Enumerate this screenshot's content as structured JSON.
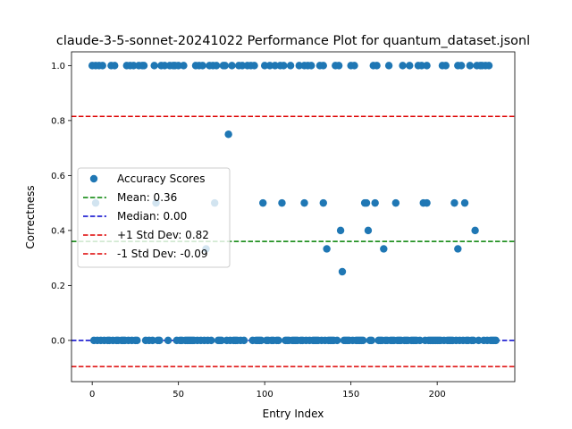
{
  "chart_data": {
    "type": "scatter",
    "title": "claude-3-5-sonnet-20241022 Performance Plot for quantum_dataset.jsonl",
    "xlabel": "Entry Index",
    "ylabel": "Correctness",
    "xlim": [
      -12,
      245
    ],
    "ylim": [
      -0.15,
      1.05
    ],
    "xticks": [
      0,
      50,
      100,
      150,
      200
    ],
    "yticks": [
      0.0,
      0.2,
      0.4,
      0.6,
      0.8,
      1.0
    ],
    "xtick_labels": [
      "0",
      "50",
      "100",
      "150",
      "200"
    ],
    "ytick_labels": [
      "0.0",
      "0.2",
      "0.4",
      "0.6",
      "0.8",
      "1.0"
    ],
    "grid": false,
    "legend_position": "center-left",
    "series": [
      {
        "name": "Accuracy Scores",
        "color": "#1f77b4",
        "points": [
          [
            0,
            1.0
          ],
          [
            2,
            1.0
          ],
          [
            4,
            1.0
          ],
          [
            6,
            1.0
          ],
          [
            11,
            1.0
          ],
          [
            13,
            1.0
          ],
          [
            20,
            1.0
          ],
          [
            22,
            1.0
          ],
          [
            24,
            1.0
          ],
          [
            27,
            1.0
          ],
          [
            29,
            1.0
          ],
          [
            30,
            1.0
          ],
          [
            36,
            1.0
          ],
          [
            40,
            1.0
          ],
          [
            42,
            1.0
          ],
          [
            45,
            1.0
          ],
          [
            47,
            1.0
          ],
          [
            48,
            1.0
          ],
          [
            50,
            1.0
          ],
          [
            53,
            1.0
          ],
          [
            60,
            1.0
          ],
          [
            62,
            1.0
          ],
          [
            64,
            1.0
          ],
          [
            68,
            1.0
          ],
          [
            70,
            1.0
          ],
          [
            72,
            1.0
          ],
          [
            76,
            1.0
          ],
          [
            77,
            1.0
          ],
          [
            81,
            1.0
          ],
          [
            85,
            1.0
          ],
          [
            87,
            1.0
          ],
          [
            90,
            1.0
          ],
          [
            92,
            1.0
          ],
          [
            94,
            1.0
          ],
          [
            100,
            1.0
          ],
          [
            103,
            1.0
          ],
          [
            106,
            1.0
          ],
          [
            109,
            1.0
          ],
          [
            111,
            1.0
          ],
          [
            115,
            1.0
          ],
          [
            120,
            1.0
          ],
          [
            123,
            1.0
          ],
          [
            125,
            1.0
          ],
          [
            127,
            1.0
          ],
          [
            132,
            1.0
          ],
          [
            134,
            1.0
          ],
          [
            141,
            1.0
          ],
          [
            143,
            1.0
          ],
          [
            150,
            1.0
          ],
          [
            152,
            1.0
          ],
          [
            163,
            1.0
          ],
          [
            165,
            1.0
          ],
          [
            172,
            1.0
          ],
          [
            180,
            1.0
          ],
          [
            184,
            1.0
          ],
          [
            189,
            1.0
          ],
          [
            191,
            1.0
          ],
          [
            194,
            1.0
          ],
          [
            203,
            1.0
          ],
          [
            205,
            1.0
          ],
          [
            212,
            1.0
          ],
          [
            214,
            1.0
          ],
          [
            219,
            1.0
          ],
          [
            223,
            1.0
          ],
          [
            225,
            1.0
          ],
          [
            226,
            1.0
          ],
          [
            228,
            1.0
          ],
          [
            230,
            1.0
          ],
          [
            79,
            0.75
          ],
          [
            2,
            0.5
          ],
          [
            37,
            0.5
          ],
          [
            71,
            0.5
          ],
          [
            99,
            0.5
          ],
          [
            110,
            0.5
          ],
          [
            123,
            0.5
          ],
          [
            134,
            0.5
          ],
          [
            158,
            0.5
          ],
          [
            159,
            0.5
          ],
          [
            164,
            0.5
          ],
          [
            176,
            0.5
          ],
          [
            192,
            0.5
          ],
          [
            194,
            0.5
          ],
          [
            210,
            0.5
          ],
          [
            216,
            0.5
          ],
          [
            144,
            0.4
          ],
          [
            160,
            0.4
          ],
          [
            222,
            0.4
          ],
          [
            136,
            0.333
          ],
          [
            66,
            0.333
          ],
          [
            169,
            0.333
          ],
          [
            212,
            0.333
          ],
          [
            145,
            0.25
          ],
          [
            1,
            0.0
          ],
          [
            3,
            0.0
          ],
          [
            5,
            0.0
          ],
          [
            7,
            0.0
          ],
          [
            9,
            0.0
          ],
          [
            10,
            0.0
          ],
          [
            12,
            0.0
          ],
          [
            14,
            0.0
          ],
          [
            15,
            0.0
          ],
          [
            17,
            0.0
          ],
          [
            18,
            0.0
          ],
          [
            19,
            0.0
          ],
          [
            21,
            0.0
          ],
          [
            23,
            0.0
          ],
          [
            25,
            0.0
          ],
          [
            26,
            0.0
          ],
          [
            31,
            0.0
          ],
          [
            33,
            0.0
          ],
          [
            35,
            0.0
          ],
          [
            38,
            0.0
          ],
          [
            39,
            0.0
          ],
          [
            44,
            0.0
          ],
          [
            49,
            0.0
          ],
          [
            51,
            0.0
          ],
          [
            52,
            0.0
          ],
          [
            54,
            0.0
          ],
          [
            55,
            0.0
          ],
          [
            56,
            0.0
          ],
          [
            57,
            0.0
          ],
          [
            58,
            0.0
          ],
          [
            59,
            0.0
          ],
          [
            61,
            0.0
          ],
          [
            63,
            0.0
          ],
          [
            65,
            0.0
          ],
          [
            67,
            0.0
          ],
          [
            69,
            0.0
          ],
          [
            73,
            0.0
          ],
          [
            74,
            0.0
          ],
          [
            75,
            0.0
          ],
          [
            78,
            0.0
          ],
          [
            80,
            0.0
          ],
          [
            82,
            0.0
          ],
          [
            83,
            0.0
          ],
          [
            84,
            0.0
          ],
          [
            86,
            0.0
          ],
          [
            88,
            0.0
          ],
          [
            93,
            0.0
          ],
          [
            95,
            0.0
          ],
          [
            96,
            0.0
          ],
          [
            97,
            0.0
          ],
          [
            98,
            0.0
          ],
          [
            101,
            0.0
          ],
          [
            102,
            0.0
          ],
          [
            104,
            0.0
          ],
          [
            105,
            0.0
          ],
          [
            107,
            0.0
          ],
          [
            108,
            0.0
          ],
          [
            112,
            0.0
          ],
          [
            113,
            0.0
          ],
          [
            114,
            0.0
          ],
          [
            116,
            0.0
          ],
          [
            117,
            0.0
          ],
          [
            118,
            0.0
          ],
          [
            119,
            0.0
          ],
          [
            121,
            0.0
          ],
          [
            122,
            0.0
          ],
          [
            124,
            0.0
          ],
          [
            126,
            0.0
          ],
          [
            128,
            0.0
          ],
          [
            129,
            0.0
          ],
          [
            130,
            0.0
          ],
          [
            131,
            0.0
          ],
          [
            133,
            0.0
          ],
          [
            135,
            0.0
          ],
          [
            137,
            0.0
          ],
          [
            138,
            0.0
          ],
          [
            139,
            0.0
          ],
          [
            140,
            0.0
          ],
          [
            142,
            0.0
          ],
          [
            146,
            0.0
          ],
          [
            147,
            0.0
          ],
          [
            148,
            0.0
          ],
          [
            149,
            0.0
          ],
          [
            151,
            0.0
          ],
          [
            153,
            0.0
          ],
          [
            154,
            0.0
          ],
          [
            155,
            0.0
          ],
          [
            156,
            0.0
          ],
          [
            157,
            0.0
          ],
          [
            161,
            0.0
          ],
          [
            162,
            0.0
          ],
          [
            166,
            0.0
          ],
          [
            167,
            0.0
          ],
          [
            168,
            0.0
          ],
          [
            170,
            0.0
          ],
          [
            171,
            0.0
          ],
          [
            173,
            0.0
          ],
          [
            174,
            0.0
          ],
          [
            175,
            0.0
          ],
          [
            177,
            0.0
          ],
          [
            178,
            0.0
          ],
          [
            179,
            0.0
          ],
          [
            181,
            0.0
          ],
          [
            182,
            0.0
          ],
          [
            183,
            0.0
          ],
          [
            185,
            0.0
          ],
          [
            186,
            0.0
          ],
          [
            187,
            0.0
          ],
          [
            188,
            0.0
          ],
          [
            190,
            0.0
          ],
          [
            193,
            0.0
          ],
          [
            195,
            0.0
          ],
          [
            196,
            0.0
          ],
          [
            197,
            0.0
          ],
          [
            198,
            0.0
          ],
          [
            199,
            0.0
          ],
          [
            200,
            0.0
          ],
          [
            201,
            0.0
          ],
          [
            202,
            0.0
          ],
          [
            204,
            0.0
          ],
          [
            206,
            0.0
          ],
          [
            207,
            0.0
          ],
          [
            208,
            0.0
          ],
          [
            209,
            0.0
          ],
          [
            211,
            0.0
          ],
          [
            213,
            0.0
          ],
          [
            215,
            0.0
          ],
          [
            217,
            0.0
          ],
          [
            218,
            0.0
          ],
          [
            220,
            0.0
          ],
          [
            221,
            0.0
          ],
          [
            224,
            0.0
          ],
          [
            227,
            0.0
          ],
          [
            229,
            0.0
          ],
          [
            231,
            0.0
          ],
          [
            232,
            0.0
          ],
          [
            233,
            0.0
          ],
          [
            234,
            0.0
          ]
        ]
      }
    ],
    "reference_lines": [
      {
        "name": "Mean: 0.36",
        "value": 0.36,
        "color": "#008000",
        "style": "dashed"
      },
      {
        "name": "Median: 0.00",
        "value": 0.0,
        "color": "#0000cc",
        "style": "dashed"
      },
      {
        "name": "+1 Std Dev: 0.82",
        "value": 0.815,
        "color": "#dd0000",
        "style": "dashed"
      },
      {
        "name": "-1 Std Dev: -0.09",
        "value": -0.095,
        "color": "#dd0000",
        "style": "dashed"
      }
    ]
  }
}
